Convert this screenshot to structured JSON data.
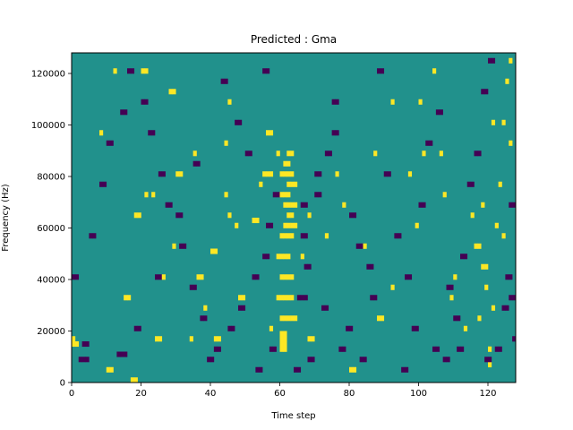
{
  "chart_data": {
    "type": "heatmap",
    "title": "Predicted : Gma",
    "xlabel": "Time step",
    "ylabel": "Frequency (Hz)",
    "xlim": [
      0,
      128
    ],
    "ylim": [
      0,
      128000
    ],
    "x_ticks": [
      0,
      20,
      40,
      60,
      80,
      100,
      120
    ],
    "x_tick_labels": [
      "0",
      "20",
      "40",
      "60",
      "80",
      "100",
      "120"
    ],
    "y_ticks": [
      0,
      20000,
      40000,
      60000,
      80000,
      100000,
      120000
    ],
    "y_tick_labels": [
      "0",
      "20000",
      "40000",
      "60000",
      "80000",
      "100000",
      "120000"
    ],
    "n_time_steps": 128,
    "n_freq_bins": 64,
    "bin_height_hz": 2000,
    "levels": {
      "low": -1,
      "mid": 0,
      "high": 1
    },
    "colors": {
      "low": "#440154",
      "mid": "#21918c",
      "high": "#fde725"
    },
    "default_level": 0,
    "high_cells": [
      [
        17,
        0
      ],
      [
        18,
        0
      ],
      [
        24,
        8
      ],
      [
        25,
        8
      ],
      [
        60,
        6
      ],
      [
        60,
        7
      ],
      [
        60,
        8
      ],
      [
        60,
        9
      ],
      [
        61,
        6
      ],
      [
        61,
        7
      ],
      [
        61,
        8
      ],
      [
        61,
        9
      ],
      [
        60,
        12
      ],
      [
        61,
        12
      ],
      [
        62,
        12
      ],
      [
        63,
        12
      ],
      [
        64,
        12
      ],
      [
        59,
        16
      ],
      [
        60,
        16
      ],
      [
        61,
        16
      ],
      [
        62,
        16
      ],
      [
        63,
        16
      ],
      [
        60,
        20
      ],
      [
        61,
        20
      ],
      [
        62,
        20
      ],
      [
        63,
        20
      ],
      [
        59,
        24
      ],
      [
        60,
        24
      ],
      [
        61,
        24
      ],
      [
        62,
        24
      ],
      [
        60,
        28
      ],
      [
        61,
        28
      ],
      [
        62,
        28
      ],
      [
        63,
        28
      ],
      [
        61,
        30
      ],
      [
        62,
        30
      ],
      [
        63,
        30
      ],
      [
        64,
        30
      ],
      [
        62,
        32
      ],
      [
        63,
        32
      ],
      [
        61,
        34
      ],
      [
        62,
        34
      ],
      [
        63,
        34
      ],
      [
        64,
        34
      ],
      [
        62,
        38
      ],
      [
        63,
        38
      ],
      [
        64,
        38
      ],
      [
        60,
        40
      ],
      [
        61,
        40
      ],
      [
        62,
        40
      ],
      [
        63,
        40
      ],
      [
        61,
        42
      ],
      [
        62,
        42
      ],
      [
        62,
        44
      ],
      [
        63,
        44
      ],
      [
        60,
        36
      ],
      [
        61,
        36
      ],
      [
        62,
        36
      ],
      [
        55,
        40
      ],
      [
        56,
        40
      ],
      [
        57,
        40
      ],
      [
        56,
        48
      ],
      [
        57,
        48
      ],
      [
        0,
        7
      ],
      [
        0,
        8
      ],
      [
        1,
        7
      ],
      [
        10,
        2
      ],
      [
        11,
        2
      ],
      [
        15,
        16
      ],
      [
        16,
        16
      ],
      [
        18,
        32
      ],
      [
        19,
        32
      ],
      [
        20,
        60
      ],
      [
        21,
        60
      ],
      [
        30,
        40
      ],
      [
        31,
        40
      ],
      [
        35,
        44
      ],
      [
        40,
        25
      ],
      [
        41,
        25
      ],
      [
        41,
        8
      ],
      [
        42,
        8
      ],
      [
        44,
        46
      ],
      [
        45,
        54
      ],
      [
        48,
        16
      ],
      [
        49,
        16
      ],
      [
        52,
        31
      ],
      [
        53,
        31
      ],
      [
        57,
        10
      ],
      [
        59,
        44
      ],
      [
        66,
        24
      ],
      [
        68,
        8
      ],
      [
        69,
        8
      ],
      [
        73,
        28
      ],
      [
        78,
        34
      ],
      [
        80,
        2
      ],
      [
        81,
        2
      ],
      [
        84,
        26
      ],
      [
        88,
        12
      ],
      [
        89,
        12
      ],
      [
        92,
        18
      ],
      [
        97,
        40
      ],
      [
        99,
        30
      ],
      [
        100,
        54
      ],
      [
        104,
        60
      ],
      [
        107,
        36
      ],
      [
        109,
        16
      ],
      [
        113,
        10
      ],
      [
        116,
        26
      ],
      [
        117,
        26
      ],
      [
        117,
        12
      ],
      [
        118,
        22
      ],
      [
        119,
        22
      ],
      [
        119,
        18
      ],
      [
        120,
        3
      ],
      [
        120,
        6
      ],
      [
        121,
        14
      ],
      [
        122,
        30
      ],
      [
        123,
        38
      ],
      [
        124,
        50
      ],
      [
        125,
        58
      ],
      [
        126,
        62
      ],
      [
        126,
        46
      ],
      [
        21,
        36
      ],
      [
        36,
        20
      ],
      [
        37,
        20
      ],
      [
        38,
        14
      ],
      [
        26,
        20
      ],
      [
        23,
        36
      ],
      [
        44,
        36
      ],
      [
        45,
        32
      ],
      [
        54,
        38
      ],
      [
        28,
        56
      ],
      [
        29,
        56
      ],
      [
        12,
        60
      ],
      [
        8,
        48
      ],
      [
        34,
        8
      ],
      [
        47,
        30
      ],
      [
        29,
        26
      ],
      [
        68,
        32
      ],
      [
        76,
        40
      ],
      [
        87,
        44
      ],
      [
        92,
        54
      ],
      [
        101,
        44
      ],
      [
        106,
        44
      ],
      [
        110,
        20
      ],
      [
        115,
        32
      ],
      [
        118,
        34
      ],
      [
        121,
        50
      ],
      [
        124,
        28
      ]
    ],
    "low_cells": [
      [
        13,
        5
      ],
      [
        14,
        5
      ],
      [
        15,
        5
      ],
      [
        3,
        7
      ],
      [
        4,
        7
      ],
      [
        2,
        4
      ],
      [
        3,
        4
      ],
      [
        4,
        4
      ],
      [
        18,
        10
      ],
      [
        19,
        10
      ],
      [
        24,
        20
      ],
      [
        25,
        20
      ],
      [
        30,
        32
      ],
      [
        31,
        32
      ],
      [
        35,
        42
      ],
      [
        36,
        42
      ],
      [
        41,
        6
      ],
      [
        42,
        6
      ],
      [
        45,
        10
      ],
      [
        46,
        10
      ],
      [
        48,
        14
      ],
      [
        49,
        14
      ],
      [
        52,
        20
      ],
      [
        53,
        20
      ],
      [
        55,
        24
      ],
      [
        56,
        24
      ],
      [
        56,
        30
      ],
      [
        57,
        30
      ],
      [
        58,
        36
      ],
      [
        59,
        36
      ],
      [
        65,
        16
      ],
      [
        66,
        16
      ],
      [
        67,
        16
      ],
      [
        67,
        22
      ],
      [
        68,
        22
      ],
      [
        66,
        28
      ],
      [
        67,
        28
      ],
      [
        66,
        34
      ],
      [
        67,
        34
      ],
      [
        70,
        36
      ],
      [
        71,
        36
      ],
      [
        70,
        40
      ],
      [
        71,
        40
      ],
      [
        73,
        44
      ],
      [
        74,
        44
      ],
      [
        75,
        48
      ],
      [
        76,
        48
      ],
      [
        75,
        54
      ],
      [
        76,
        54
      ],
      [
        80,
        32
      ],
      [
        81,
        32
      ],
      [
        82,
        26
      ],
      [
        83,
        26
      ],
      [
        85,
        22
      ],
      [
        86,
        22
      ],
      [
        86,
        16
      ],
      [
        87,
        16
      ],
      [
        88,
        60
      ],
      [
        89,
        60
      ],
      [
        90,
        40
      ],
      [
        91,
        40
      ],
      [
        93,
        28
      ],
      [
        94,
        28
      ],
      [
        96,
        20
      ],
      [
        97,
        20
      ],
      [
        98,
        10
      ],
      [
        99,
        10
      ],
      [
        100,
        34
      ],
      [
        101,
        34
      ],
      [
        102,
        46
      ],
      [
        103,
        46
      ],
      [
        105,
        52
      ],
      [
        106,
        52
      ],
      [
        108,
        18
      ],
      [
        109,
        18
      ],
      [
        110,
        12
      ],
      [
        111,
        12
      ],
      [
        112,
        24
      ],
      [
        113,
        24
      ],
      [
        114,
        38
      ],
      [
        115,
        38
      ],
      [
        116,
        44
      ],
      [
        117,
        44
      ],
      [
        118,
        56
      ],
      [
        119,
        56
      ],
      [
        120,
        62
      ],
      [
        121,
        62
      ],
      [
        122,
        6
      ],
      [
        123,
        6
      ],
      [
        124,
        14
      ],
      [
        125,
        14
      ],
      [
        126,
        34
      ],
      [
        127,
        34
      ],
      [
        127,
        8
      ],
      [
        0,
        20
      ],
      [
        1,
        20
      ],
      [
        5,
        28
      ],
      [
        6,
        28
      ],
      [
        8,
        38
      ],
      [
        9,
        38
      ],
      [
        10,
        46
      ],
      [
        11,
        46
      ],
      [
        14,
        52
      ],
      [
        15,
        52
      ],
      [
        16,
        60
      ],
      [
        17,
        60
      ],
      [
        20,
        54
      ],
      [
        21,
        54
      ],
      [
        22,
        48
      ],
      [
        23,
        48
      ],
      [
        25,
        40
      ],
      [
        26,
        40
      ],
      [
        27,
        34
      ],
      [
        28,
        34
      ],
      [
        31,
        26
      ],
      [
        32,
        26
      ],
      [
        34,
        18
      ],
      [
        35,
        18
      ],
      [
        37,
        12
      ],
      [
        38,
        12
      ],
      [
        39,
        4
      ],
      [
        40,
        4
      ],
      [
        43,
        58
      ],
      [
        44,
        58
      ],
      [
        47,
        50
      ],
      [
        48,
        50
      ],
      [
        50,
        44
      ],
      [
        51,
        44
      ],
      [
        53,
        2
      ],
      [
        54,
        2
      ],
      [
        55,
        60
      ],
      [
        56,
        60
      ],
      [
        57,
        6
      ],
      [
        58,
        6
      ],
      [
        64,
        2
      ],
      [
        65,
        2
      ],
      [
        68,
        4
      ],
      [
        69,
        4
      ],
      [
        72,
        14
      ],
      [
        73,
        14
      ],
      [
        77,
        6
      ],
      [
        78,
        6
      ],
      [
        79,
        10
      ],
      [
        80,
        10
      ],
      [
        83,
        4
      ],
      [
        84,
        4
      ],
      [
        95,
        2
      ],
      [
        96,
        2
      ],
      [
        104,
        6
      ],
      [
        105,
        6
      ],
      [
        107,
        4
      ],
      [
        108,
        4
      ],
      [
        111,
        6
      ],
      [
        112,
        6
      ],
      [
        119,
        4
      ],
      [
        120,
        4
      ],
      [
        126,
        16
      ],
      [
        127,
        16
      ],
      [
        125,
        20
      ],
      [
        126,
        20
      ]
    ]
  }
}
